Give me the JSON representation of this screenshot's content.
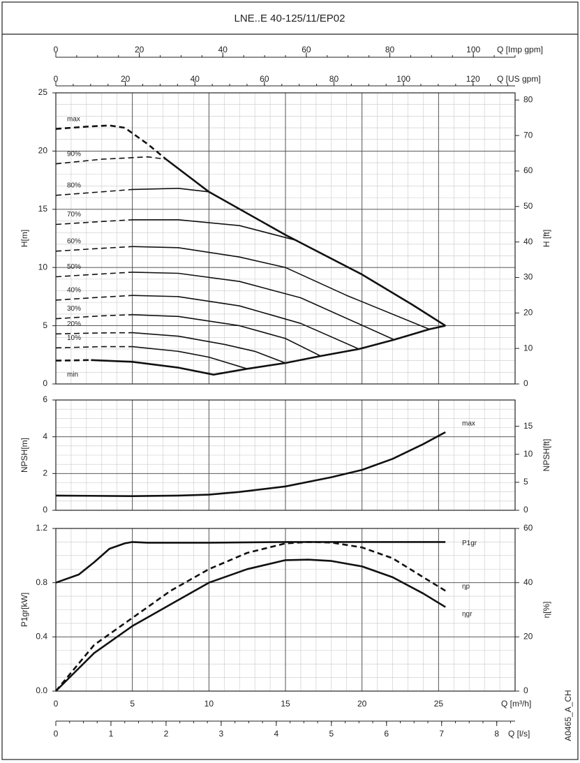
{
  "chart_data": [
    {
      "type": "line",
      "title": "LNE..E 40-125/11/EP02",
      "ylabel": "H[m]",
      "y2label": "H [ft]",
      "xlim": [
        0,
        30
      ],
      "xticks": [
        0,
        5,
        10,
        15,
        20,
        25
      ],
      "ylim": [
        0,
        25
      ],
      "yticks": [
        0,
        5,
        10,
        15,
        20,
        25
      ],
      "y2lim": [
        0,
        82.02
      ],
      "y2ticks": [
        0,
        10,
        20,
        30,
        40,
        50,
        60,
        70,
        80
      ],
      "grid": true,
      "minor_grid": {
        "x": 1,
        "y": 1
      },
      "top_axes": [
        {
          "label": "Q [Imp gpm]",
          "xlim": [
            0,
            110.0
          ],
          "xticks": [
            0,
            20,
            40,
            60,
            80,
            100
          ],
          "minor_step": 5
        },
        {
          "label": "Q [US gpm]",
          "xlim": [
            0,
            132.1
          ],
          "xticks": [
            0,
            20,
            40,
            60,
            80,
            100,
            120
          ],
          "minor_step": 5
        }
      ],
      "series": [
        {
          "name": "max",
          "color": "#111",
          "bold": true,
          "segments": [
            {
              "style": "dashed",
              "x": [
                0,
                2,
                3.5,
                4.5,
                6,
                7.2
              ],
              "values": [
                21.9,
                22.1,
                22.2,
                22.0,
                20.6,
                19.3
              ]
            },
            {
              "style": "solid",
              "x": [
                7.2,
                10,
                15,
                20,
                23.3,
                25.45
              ],
              "values": [
                19.3,
                16.5,
                12.8,
                9.4,
                6.8,
                5.0
              ]
            }
          ]
        },
        {
          "name": "90%",
          "color": "#111",
          "segments": [
            {
              "style": "dashed",
              "x": [
                0,
                3,
                6,
                7.2
              ],
              "values": [
                18.9,
                19.3,
                19.5,
                19.3
              ]
            }
          ]
        },
        {
          "name": "80%",
          "color": "#111",
          "segments": [
            {
              "style": "dashed",
              "x": [
                0,
                3,
                5
              ],
              "values": [
                16.2,
                16.5,
                16.7
              ]
            },
            {
              "style": "solid",
              "x": [
                5,
                8,
                10
              ],
              "values": [
                16.7,
                16.8,
                16.5
              ]
            }
          ]
        },
        {
          "name": "70%",
          "color": "#111",
          "segments": [
            {
              "style": "dashed",
              "x": [
                0,
                3,
                5
              ],
              "values": [
                13.7,
                13.95,
                14.1
              ]
            },
            {
              "style": "solid",
              "x": [
                5,
                8,
                12,
                15.8
              ],
              "values": [
                14.1,
                14.1,
                13.6,
                12.3
              ]
            }
          ]
        },
        {
          "name": "60%",
          "color": "#111",
          "segments": [
            {
              "style": "dashed",
              "x": [
                0,
                3,
                5
              ],
              "values": [
                11.4,
                11.65,
                11.8
              ]
            },
            {
              "style": "solid",
              "x": [
                5,
                8,
                12,
                15,
                19,
                24.4
              ],
              "values": [
                11.8,
                11.7,
                10.9,
                10.0,
                7.6,
                4.7
              ]
            }
          ]
        },
        {
          "name": "50%",
          "color": "#111",
          "segments": [
            {
              "style": "dashed",
              "x": [
                0,
                3,
                5
              ],
              "values": [
                9.2,
                9.45,
                9.6
              ]
            },
            {
              "style": "solid",
              "x": [
                5,
                8,
                12,
                16,
                22.1
              ],
              "values": [
                9.6,
                9.5,
                8.8,
                7.4,
                3.8
              ]
            }
          ]
        },
        {
          "name": "40%",
          "color": "#111",
          "segments": [
            {
              "style": "dashed",
              "x": [
                0,
                3,
                5
              ],
              "values": [
                7.2,
                7.45,
                7.6
              ]
            },
            {
              "style": "solid",
              "x": [
                5,
                8,
                12,
                16,
                19.8
              ],
              "values": [
                7.6,
                7.5,
                6.7,
                5.2,
                3.0
              ]
            }
          ]
        },
        {
          "name": "30%",
          "color": "#111",
          "segments": [
            {
              "style": "dashed",
              "x": [
                0,
                3,
                5
              ],
              "values": [
                5.6,
                5.85,
                5.95
              ]
            },
            {
              "style": "solid",
              "x": [
                5,
                8,
                12,
                15,
                17.3
              ],
              "values": [
                5.95,
                5.8,
                5.0,
                3.9,
                2.4
              ]
            }
          ]
        },
        {
          "name": "20%",
          "color": "#111",
          "segments": [
            {
              "style": "dashed",
              "x": [
                0,
                3,
                5
              ],
              "values": [
                4.3,
                4.38,
                4.4
              ]
            },
            {
              "style": "solid",
              "x": [
                5,
                8,
                11,
                13,
                15
              ],
              "values": [
                4.4,
                4.1,
                3.4,
                2.8,
                1.8
              ]
            }
          ]
        },
        {
          "name": "10%",
          "color": "#111",
          "segments": [
            {
              "style": "dashed",
              "x": [
                0,
                3,
                5
              ],
              "values": [
                3.1,
                3.2,
                3.2
              ]
            },
            {
              "style": "solid",
              "x": [
                5,
                8,
                10,
                12.5
              ],
              "values": [
                3.2,
                2.8,
                2.3,
                1.3
              ]
            }
          ]
        },
        {
          "name": "min",
          "color": "#111",
          "bold": true,
          "label_side": "below",
          "segments": [
            {
              "style": "dashed",
              "x": [
                0,
                2.3
              ],
              "values": [
                2.0,
                2.05
              ]
            },
            {
              "style": "solid",
              "x": [
                2.3,
                5,
                8,
                10.3,
                12.5,
                15,
                17.3,
                19.8,
                22.1,
                24.4,
                25.45
              ],
              "values": [
                2.05,
                1.9,
                1.4,
                0.8,
                1.3,
                1.8,
                2.4,
                3.0,
                3.8,
                4.7,
                5.0
              ]
            }
          ]
        }
      ]
    },
    {
      "type": "line",
      "ylabel": "NPSH[m]",
      "y2label": "NPSH[ft]",
      "xlim": [
        0,
        30
      ],
      "xticks": [
        0,
        5,
        10,
        15,
        20,
        25
      ],
      "ylim": [
        0,
        6
      ],
      "yticks": [
        0,
        2,
        4,
        6
      ],
      "y2lim": [
        0,
        19.685
      ],
      "y2ticks": [
        0,
        5,
        10,
        15
      ],
      "grid": true,
      "minor_grid": {
        "x": 1,
        "y": 0.5
      },
      "series": [
        {
          "name": "max",
          "color": "#111",
          "bold": true,
          "segments": [
            {
              "style": "solid",
              "x": [
                0,
                5,
                8,
                10,
                12,
                15,
                18,
                20,
                22,
                24,
                25.45
              ],
              "values": [
                0.8,
                0.77,
                0.8,
                0.85,
                1.0,
                1.3,
                1.8,
                2.2,
                2.8,
                3.6,
                4.25
              ]
            }
          ]
        }
      ]
    },
    {
      "type": "line",
      "ylabel": "P1gr[kW]",
      "y2label": "η[%]",
      "xlabel": "Q [m³/h]",
      "annotation": "A0465_A_CH",
      "xlim": [
        0,
        30
      ],
      "xticks": [
        0,
        5,
        10,
        15,
        20,
        25
      ],
      "ylim": [
        0,
        1.2
      ],
      "yticks": [
        {
          "value": 0,
          "label": "0.0"
        },
        0.4,
        0.8,
        1.2
      ],
      "y2lim": [
        0,
        60
      ],
      "y2ticks": [
        0,
        20,
        40,
        60
      ],
      "grid": true,
      "minor_grid": {
        "x": 1,
        "y": 0.1
      },
      "bottom_axis": {
        "label": "Q [l/s]",
        "xlim": [
          0,
          8.333
        ],
        "xticks": [
          0,
          1,
          2,
          3,
          4,
          5,
          6,
          7,
          8
        ],
        "minor_step": 0.25
      },
      "series": [
        {
          "name": "P1gr",
          "color": "#111",
          "bold": true,
          "segments": [
            {
              "style": "solid",
              "x": [
                0,
                1.5,
                2.5,
                3.5,
                4.5,
                5,
                6,
                10,
                15,
                20,
                25.45
              ],
              "values": [
                0.8,
                0.86,
                0.95,
                1.05,
                1.09,
                1.1,
                1.095,
                1.095,
                1.1,
                1.1,
                1.1
              ]
            }
          ]
        },
        {
          "name": "ηp",
          "color": "#111",
          "bold": true,
          "axis": "y2",
          "segments": [
            {
              "style": "dashed",
              "x": [
                0,
                2.5,
                5,
                7.5,
                10,
                12.5,
                15,
                16.5,
                18,
                20,
                22,
                24,
                25.45
              ],
              "values": [
                0,
                17,
                27,
                37,
                45,
                51,
                54.5,
                55,
                54.8,
                53,
                49,
                42,
                37
              ]
            }
          ]
        },
        {
          "name": "ηgr",
          "color": "#111",
          "bold": true,
          "axis": "y2",
          "segments": [
            {
              "style": "solid",
              "x": [
                0,
                2.5,
                5,
                7.5,
                10,
                12.5,
                15,
                16.5,
                18,
                20,
                22,
                24,
                25.45
              ],
              "values": [
                0,
                14,
                24,
                32,
                40,
                45,
                48.3,
                48.5,
                48,
                46,
                42,
                36,
                31
              ]
            }
          ]
        }
      ]
    }
  ]
}
